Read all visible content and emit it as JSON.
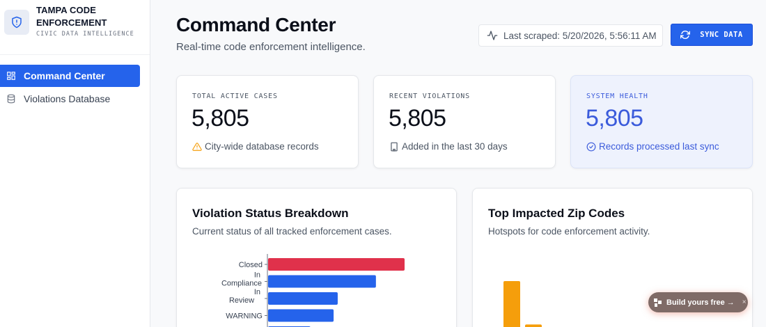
{
  "brand": {
    "title_line1": "TAMPA CODE",
    "title_line2": "ENFORCEMENT",
    "subtitle": "CIVIC DATA INTELLIGENCE"
  },
  "sidebar": {
    "items": [
      {
        "label": "Command Center",
        "icon": "dashboard-grid-icon",
        "active": true
      },
      {
        "label": "Violations Database",
        "icon": "database-icon",
        "active": false
      }
    ]
  },
  "header": {
    "title": "Command Center",
    "subtitle": "Real-time code enforcement intelligence.",
    "last_scraped": "Last scraped: 5/20/2026, 5:56:11 AM",
    "sync_label": "SYNC DATA"
  },
  "stats": [
    {
      "label": "TOTAL ACTIVE CASES",
      "value": "5,805",
      "foot": "City-wide database records",
      "icon": "warning-triangle-icon"
    },
    {
      "label": "RECENT VIOLATIONS",
      "value": "5,805",
      "foot": "Added in the last 30 days",
      "icon": "building-icon"
    },
    {
      "label": "SYSTEM HEALTH",
      "value": "5,805",
      "foot": "Records processed last sync",
      "icon": "check-circle-icon"
    }
  ],
  "status_panel": {
    "title": "Violation Status Breakdown",
    "subtitle": "Current status of all tracked enforcement cases."
  },
  "zip_panel": {
    "title": "Top Impacted Zip Codes",
    "subtitle": "Hotspots for code enforcement activity."
  },
  "chart_data": [
    {
      "type": "bar",
      "orientation": "horizontal",
      "categories": [
        "Closed",
        "In Compliance",
        "In Review",
        "WARNING",
        ""
      ],
      "values": [
        100,
        79,
        51,
        48,
        31
      ],
      "colors": [
        "#e0314b",
        "#2563eb",
        "#2563eb",
        "#2563eb",
        "#2563eb"
      ],
      "xlabel": "",
      "ylabel": ""
    },
    {
      "type": "bar",
      "orientation": "vertical",
      "categories": [
        "",
        ""
      ],
      "values": [
        100,
        24
      ],
      "colors": [
        "#f59e0b",
        "#f59e0b"
      ],
      "xlabel": "",
      "ylabel": ""
    }
  ],
  "badge": {
    "label": "Build yours free →",
    "close": "×"
  },
  "colors": {
    "accent": "#2563eb",
    "danger": "#e0314b",
    "amber": "#f59e0b"
  }
}
